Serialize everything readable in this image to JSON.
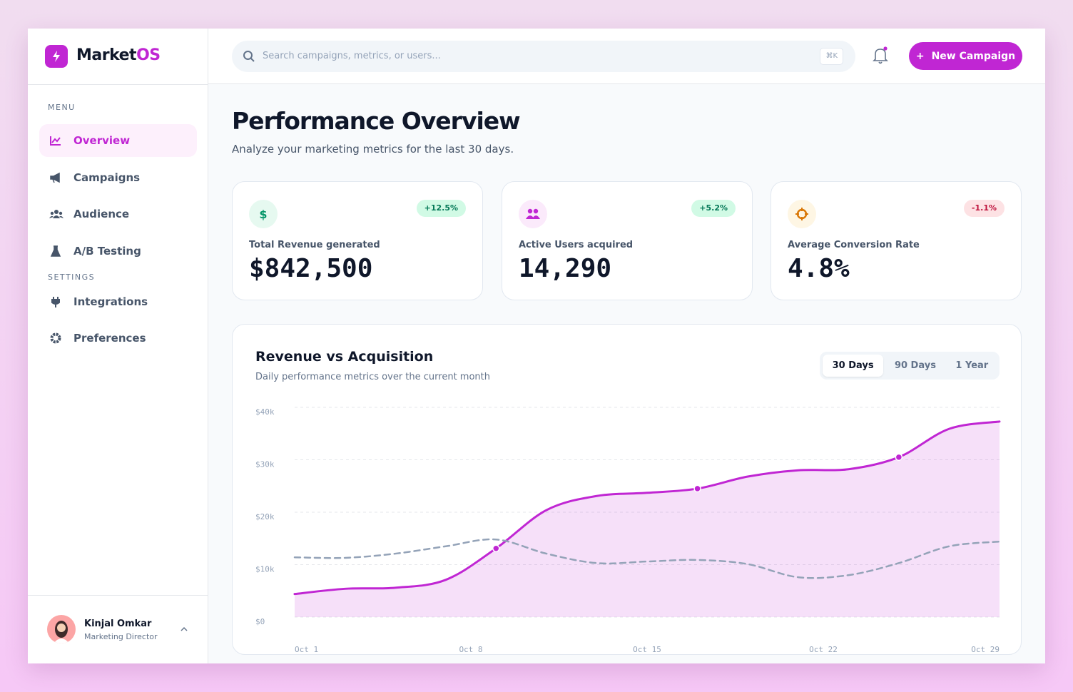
{
  "brand": {
    "name_a": "Market",
    "name_b": "OS"
  },
  "search": {
    "placeholder": "Search campaigns, metrics, or users...",
    "shortcut": "⌘K"
  },
  "header": {
    "button": "New Campaign"
  },
  "menu": {
    "title": "MENU",
    "items": [
      "Overview",
      "Campaigns",
      "Audience",
      "A/B Testing"
    ]
  },
  "settings": {
    "title": "SETTINGS",
    "items": [
      "Integrations",
      "Preferences"
    ]
  },
  "user": {
    "name": "Kinjal Omkar",
    "role": "Marketing Director"
  },
  "page": {
    "title": "Performance Overview",
    "subtitle": "Analyze your marketing metrics for the last 30 days."
  },
  "stats": [
    {
      "label": "Total Revenue generated",
      "value": "$842,500",
      "change": "+12.5%"
    },
    {
      "label": "Active Users acquired",
      "value": "14,290",
      "change": "+5.2%"
    },
    {
      "label": "Average Conversion Rate",
      "value": "4.8%",
      "change": "-1.1%"
    }
  ],
  "chart_data": {
    "type": "line",
    "title": "Revenue vs Acquisition",
    "subtitle": "Daily performance metrics over the current month",
    "ranges": [
      "30 Days",
      "90 Days",
      "1 Year"
    ],
    "x": [
      1,
      3,
      5,
      7,
      9,
      11,
      13,
      15,
      17,
      19,
      21,
      23,
      25,
      27,
      29
    ],
    "xlim": [
      1,
      29
    ],
    "xticks": [
      {
        "value": 1,
        "label": "Oct 1"
      },
      {
        "value": 8,
        "label": "Oct 8"
      },
      {
        "value": 15,
        "label": "Oct 15"
      },
      {
        "value": 22,
        "label": "Oct 22"
      },
      {
        "value": 29,
        "label": "Oct 29"
      }
    ],
    "ylim": [
      0,
      40000
    ],
    "yticks": [
      {
        "value": 0,
        "label": "$0"
      },
      {
        "value": 10000,
        "label": "$10k"
      },
      {
        "value": 20000,
        "label": "$20k"
      },
      {
        "value": 30000,
        "label": "$30k"
      },
      {
        "value": 40000,
        "label": "$40k"
      }
    ],
    "grid": true,
    "series": [
      {
        "color": "#c026d3",
        "style": "solid",
        "fill": true,
        "values": [
          4400,
          5400,
          5600,
          7100,
          13100,
          20400,
          23100,
          23700,
          24500,
          26800,
          28000,
          28200,
          30500,
          35900,
          37300
        ]
      },
      {
        "color": "#94a3b8",
        "style": "dashed",
        "fill": false,
        "values": [
          11400,
          11300,
          12100,
          13500,
          14800,
          12100,
          10300,
          10600,
          10900,
          10100,
          7600,
          8000,
          10300,
          13500,
          14400
        ]
      }
    ]
  }
}
